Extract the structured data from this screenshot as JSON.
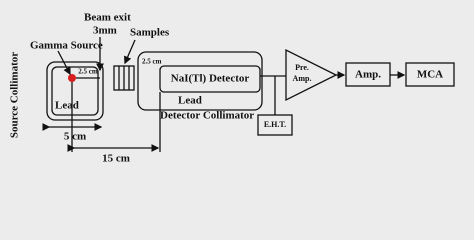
{
  "labels": {
    "source_collimator": "Source Collimator",
    "gamma_source": "Gamma Source",
    "beam_exit": "Beam exit",
    "beam_exit_size": "3mm",
    "samples": "Samples",
    "source_lead": "Lead",
    "source_gap": "2.5 cm",
    "detector_gap": "2.5 cm",
    "detector": "NaI(Tl) Detector",
    "detector_lead": "Lead",
    "detector_collimator": "Detector Collimator",
    "eht": "E.H.T.",
    "preamp_line1": "Pre.",
    "preamp_line2": "Amp.",
    "amp": "Amp.",
    "mca": "MCA",
    "width_5cm": "5 cm",
    "distance_15cm": "15 cm"
  }
}
